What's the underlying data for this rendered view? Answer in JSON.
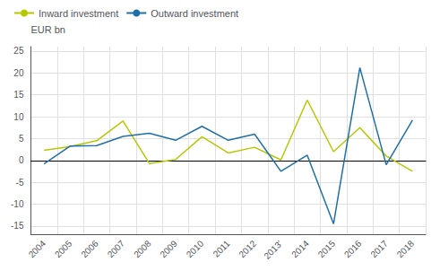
{
  "chart_data": {
    "type": "line",
    "ylabel": "EUR bn",
    "categories": [
      "2004",
      "2005",
      "2006",
      "2007",
      "2008",
      "2009",
      "2010",
      "2011",
      "2012",
      "2013’",
      "2014",
      "2015",
      "2016",
      "2017",
      "2018"
    ],
    "series": [
      {
        "name": "Inward investment",
        "color": "#b5c800",
        "values": [
          2.3,
          3.2,
          4.5,
          9.0,
          -0.7,
          0.2,
          5.4,
          1.7,
          3.0,
          0.1,
          13.8,
          2.0,
          7.5,
          1.0,
          -2.5
        ]
      },
      {
        "name": "Outward investment",
        "color": "#1f6fa8",
        "values": [
          -0.8,
          3.3,
          3.4,
          5.5,
          6.2,
          4.6,
          7.8,
          4.6,
          6.0,
          -2.5,
          1.2,
          -14.5,
          21.2,
          -1.0,
          9.2
        ]
      }
    ],
    "ylim": [
      -17,
      26
    ],
    "yticks": [
      -15,
      -10,
      -5,
      0,
      5,
      10,
      15,
      20,
      25
    ],
    "grid": true,
    "legend": "upper left"
  }
}
